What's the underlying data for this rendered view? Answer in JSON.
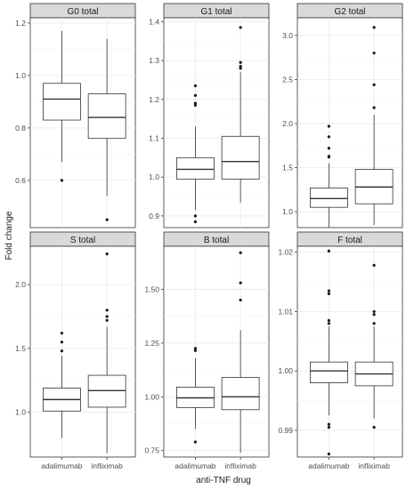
{
  "chart_data": {
    "type": "boxplot",
    "xlabel": "anti-TNF drug",
    "ylabel": "Fold change",
    "categories": [
      "adalimumab",
      "infliximab"
    ],
    "panels": [
      {
        "title": "G0 total",
        "ylim": [
          0.42,
          1.22
        ],
        "yticks": [
          0.6,
          0.8,
          1.0,
          1.2
        ],
        "ytick_labels": [
          "0.6",
          "0.8",
          "1.0",
          "1.2"
        ],
        "boxes": [
          {
            "category": "adalimumab",
            "lower_whisker": 0.67,
            "q1": 0.83,
            "median": 0.91,
            "q3": 0.97,
            "upper_whisker": 1.17,
            "outliers": [
              0.6
            ]
          },
          {
            "category": "infliximab",
            "lower_whisker": 0.54,
            "q1": 0.76,
            "median": 0.84,
            "q3": 0.93,
            "upper_whisker": 1.14,
            "outliers": [
              0.45
            ]
          }
        ]
      },
      {
        "title": "G1 total",
        "ylim": [
          0.87,
          1.41
        ],
        "yticks": [
          0.9,
          1.0,
          1.1,
          1.2,
          1.3,
          1.4
        ],
        "ytick_labels": [
          "0.9",
          "1.0",
          "1.1",
          "1.2",
          "1.3",
          "1.4"
        ],
        "boxes": [
          {
            "category": "adalimumab",
            "lower_whisker": 0.915,
            "q1": 0.995,
            "median": 1.02,
            "q3": 1.05,
            "upper_whisker": 1.13,
            "outliers": [
              0.885,
              0.9,
              1.185,
              1.19,
              1.21,
              1.235
            ]
          },
          {
            "category": "infliximab",
            "lower_whisker": 0.935,
            "q1": 0.995,
            "median": 1.04,
            "q3": 1.105,
            "upper_whisker": 1.27,
            "outliers": [
              1.28,
              1.285,
              1.295,
              1.385
            ]
          }
        ]
      },
      {
        "title": "G2 total",
        "ylim": [
          0.82,
          3.2
        ],
        "yticks": [
          1.0,
          1.5,
          2.0,
          2.5,
          3.0
        ],
        "ytick_labels": [
          "1.0",
          "1.5",
          "2.0",
          "2.5",
          "3.0"
        ],
        "boxes": [
          {
            "category": "adalimumab",
            "lower_whisker": 0.82,
            "q1": 1.05,
            "median": 1.15,
            "q3": 1.27,
            "upper_whisker": 1.55,
            "outliers": [
              1.62,
              1.63,
              1.72,
              1.85,
              1.97
            ]
          },
          {
            "category": "infliximab",
            "lower_whisker": 0.85,
            "q1": 1.09,
            "median": 1.28,
            "q3": 1.48,
            "upper_whisker": 2.1,
            "outliers": [
              2.18,
              2.44,
              2.8,
              3.09
            ]
          }
        ]
      },
      {
        "title": "S total",
        "ylim": [
          0.65,
          2.3
        ],
        "yticks": [
          1.0,
          1.5,
          2.0
        ],
        "ytick_labels": [
          "1.0",
          "1.5",
          "2.0"
        ],
        "boxes": [
          {
            "category": "adalimumab",
            "lower_whisker": 0.8,
            "q1": 1.01,
            "median": 1.1,
            "q3": 1.19,
            "upper_whisker": 1.44,
            "outliers": [
              1.48,
              1.55,
              1.62
            ]
          },
          {
            "category": "infliximab",
            "lower_whisker": 0.68,
            "q1": 1.04,
            "median": 1.17,
            "q3": 1.29,
            "upper_whisker": 1.67,
            "outliers": [
              1.72,
              1.75,
              1.8,
              2.24
            ]
          }
        ]
      },
      {
        "title": "B total",
        "ylim": [
          0.72,
          1.7
        ],
        "yticks": [
          0.75,
          1.0,
          1.25,
          1.5
        ],
        "ytick_labels": [
          "0.75",
          "1.00",
          "1.25",
          "1.50"
        ],
        "boxes": [
          {
            "category": "adalimumab",
            "lower_whisker": 0.85,
            "q1": 0.95,
            "median": 0.995,
            "q3": 1.045,
            "upper_whisker": 1.18,
            "outliers": [
              0.79,
              1.215,
              1.225
            ]
          },
          {
            "category": "infliximab",
            "lower_whisker": 0.74,
            "q1": 0.94,
            "median": 1.0,
            "q3": 1.09,
            "upper_whisker": 1.31,
            "outliers": [
              1.45,
              1.53,
              1.67
            ]
          }
        ]
      },
      {
        "title": "F total",
        "ylim": [
          0.9855,
          1.021
        ],
        "yticks": [
          0.99,
          1.0,
          1.01,
          1.02
        ],
        "ytick_labels": [
          "0.99",
          "1.00",
          "1.01",
          "1.02"
        ],
        "boxes": [
          {
            "category": "adalimumab",
            "lower_whisker": 0.9925,
            "q1": 0.998,
            "median": 1.0,
            "q3": 1.0015,
            "upper_whisker": 1.0075,
            "outliers": [
              0.986,
              0.991,
              0.9905,
              1.008,
              1.0085,
              1.013,
              1.0135,
              1.0202
            ]
          },
          {
            "category": "infliximab",
            "lower_whisker": 0.992,
            "q1": 0.9975,
            "median": 0.9995,
            "q3": 1.0015,
            "upper_whisker": 1.0075,
            "outliers": [
              0.9905,
              1.008,
              1.0095,
              1.01,
              1.0178
            ]
          }
        ]
      }
    ]
  }
}
